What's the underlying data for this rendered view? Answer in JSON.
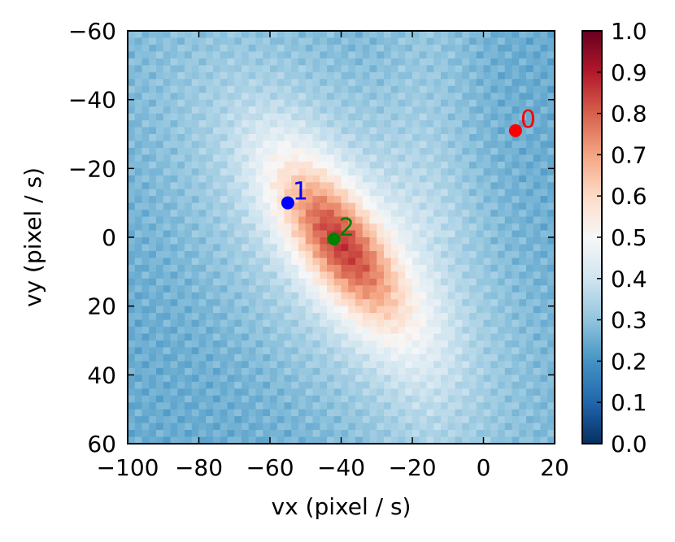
{
  "chart_data": {
    "type": "heatmap",
    "title": "",
    "xlabel": "vx (pixel / s)",
    "ylabel": "vy (pixel / s)",
    "xlim": [
      -100,
      20
    ],
    "ylim": [
      -60,
      60
    ],
    "y_inverted": true,
    "x_ticks": [
      -100,
      -80,
      -60,
      -40,
      -20,
      0,
      20
    ],
    "x_tick_labels": [
      "−100",
      "−80",
      "−60",
      "−40",
      "−20",
      "0",
      "20"
    ],
    "y_ticks": [
      -60,
      -40,
      -20,
      0,
      20,
      40,
      60
    ],
    "y_tick_labels": [
      "−60",
      "−40",
      "−20",
      "0",
      "20",
      "40",
      "60"
    ],
    "grid": false,
    "colormap": "RdBu_r",
    "colorbar": {
      "range": [
        0.0,
        1.0
      ],
      "ticks": [
        0.0,
        0.1,
        0.2,
        0.3,
        0.4,
        0.5,
        0.6,
        0.7,
        0.8,
        0.9,
        1.0
      ],
      "tick_labels": [
        "0.0",
        "0.1",
        "0.2",
        "0.3",
        "0.4",
        "0.5",
        "0.6",
        "0.7",
        "0.8",
        "0.9",
        "1.0"
      ],
      "stops": [
        "#053061",
        "#2166ac",
        "#4393c3",
        "#92c5de",
        "#d1e5f0",
        "#f7f7f7",
        "#fddbc7",
        "#f4a582",
        "#d6604d",
        "#b2182b",
        "#67001f"
      ]
    },
    "heatmap_model": {
      "peak_center": [
        -40,
        2
      ],
      "peak_value": 1.0,
      "background_value": 0.3,
      "note_peak_shape": "elongated ellipse oriented from lower-right to upper-left"
    },
    "points": [
      {
        "label": "0",
        "x": 9,
        "y": -31,
        "color": "#ff0000"
      },
      {
        "label": "1",
        "x": -55,
        "y": -10,
        "color": "#0000ff"
      },
      {
        "label": "2",
        "x": -42,
        "y": 0.5,
        "color": "#008000"
      }
    ]
  }
}
